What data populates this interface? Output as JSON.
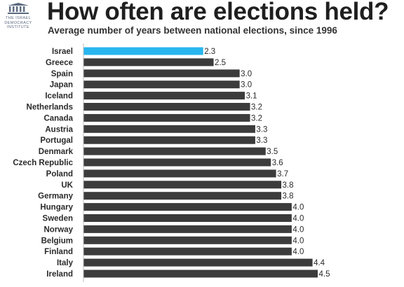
{
  "header": {
    "title": "How often are elections held?",
    "subtitle": "Average number of years between national elections, since 1996"
  },
  "logo": {
    "text_lines": [
      "THE ISRAEL",
      "DEMOCRACY",
      "INSTITUTE"
    ],
    "color": "#5b6b80"
  },
  "colors": {
    "highlight": "#29b6ef",
    "bar": "#3c3c3c",
    "axis": "#bdbdbd"
  },
  "chart_data": {
    "type": "bar",
    "orientation": "horizontal",
    "title": "How often are elections held?",
    "subtitle": "Average number of years between national elections, since 1996",
    "categories": [
      "Israel",
      "Greece",
      "Spain",
      "Japan",
      "Iceland",
      "Netherlands",
      "Canada",
      "Austria",
      "Portugal",
      "Denmark",
      "Czech Republic",
      "Poland",
      "UK",
      "Germany",
      "Hungary",
      "Sweden",
      "Norway",
      "Belgium",
      "Finland",
      "Italy",
      "Ireland"
    ],
    "values": [
      2.3,
      2.5,
      3.0,
      3.0,
      3.1,
      3.2,
      3.2,
      3.3,
      3.3,
      3.5,
      3.6,
      3.7,
      3.8,
      3.8,
      4.0,
      4.0,
      4.0,
      4.0,
      4.0,
      4.4,
      4.5
    ],
    "value_labels": [
      "2.3",
      "2.5",
      "3.0",
      "3.0",
      "3.1",
      "3.2",
      "3.2",
      "3.3",
      "3.3",
      "3.5",
      "3.6",
      "3.7",
      "3.8",
      "3.8",
      "4.0",
      "4.0",
      "4.0",
      "4.0",
      "4.0",
      "4.4",
      "4.5"
    ],
    "highlight_category": "Israel",
    "xlim": [
      0,
      4.5
    ],
    "grid": false,
    "legend": "none"
  }
}
